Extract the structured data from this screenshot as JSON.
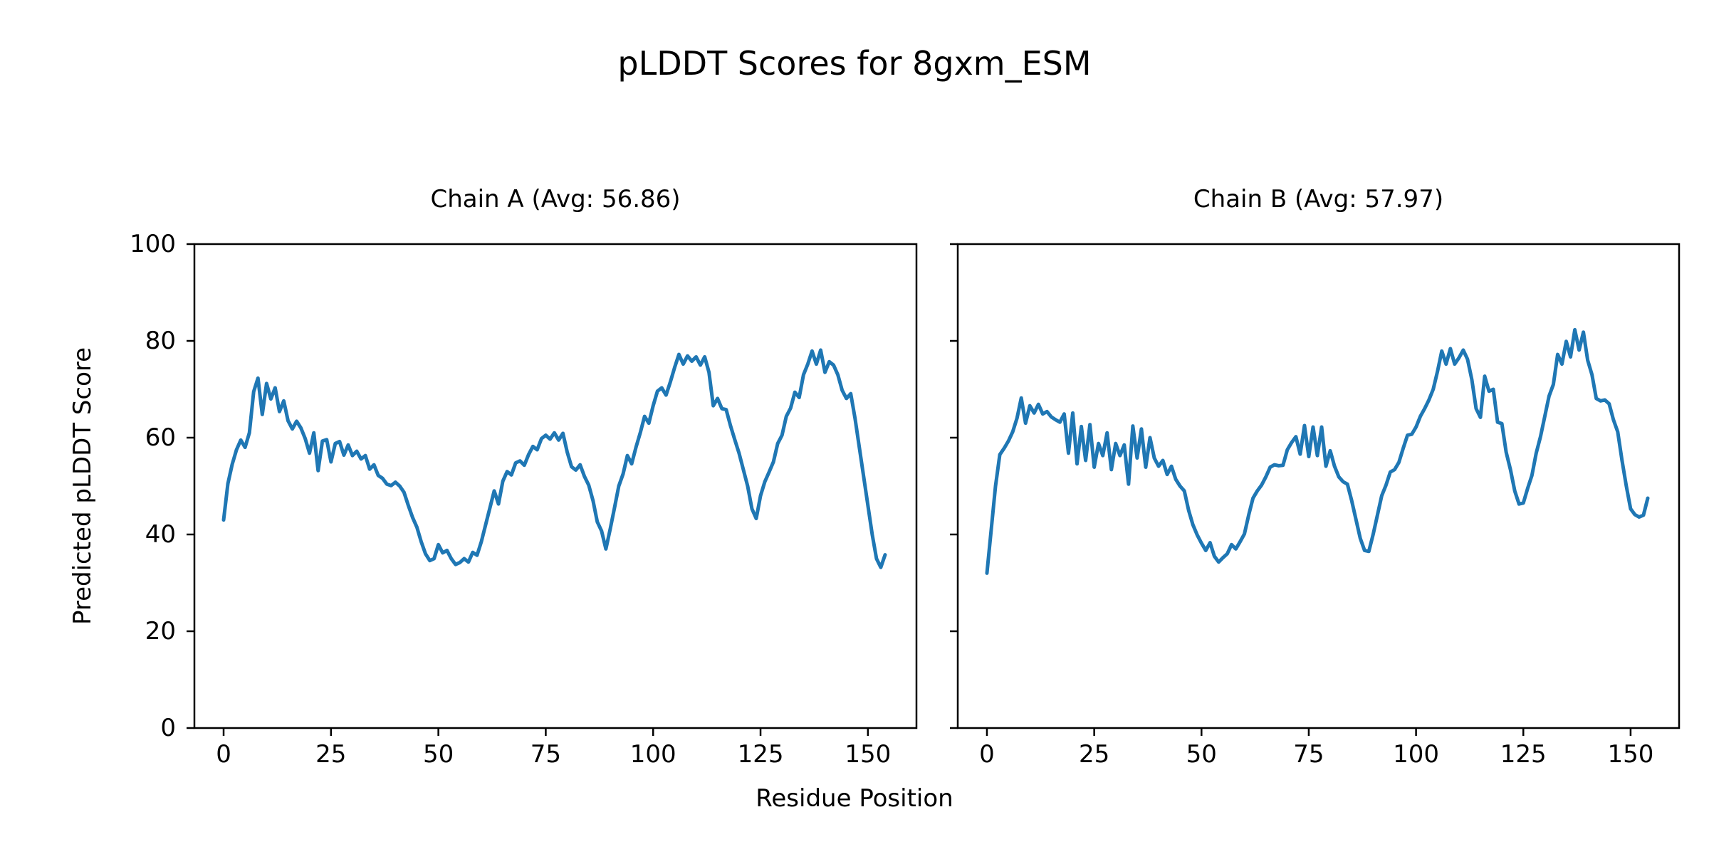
{
  "figure": {
    "suptitle": "pLDDT Scores for 8gxm_ESM",
    "xlabel": "Residue Position",
    "ylabel": "Predicted pLDDT Score",
    "background": "#ffffff",
    "text_color": "#000000",
    "spine_color": "#000000",
    "line_color": "#1f77b4"
  },
  "chart_data": [
    {
      "type": "line",
      "title": "Chain A (Avg: 56.86)",
      "avg_label": 56.86,
      "xlabel": "Residue Position",
      "ylabel": "Predicted pLDDT Score",
      "x_start": 0,
      "x_step": 1,
      "xlim": [
        -6.8,
        161.3
      ],
      "ylim": [
        0,
        100
      ],
      "x_ticks": [
        0,
        25,
        50,
        75,
        100,
        125,
        150
      ],
      "y_ticks": [
        0,
        20,
        40,
        60,
        80,
        100
      ],
      "show_y_tick_labels": true,
      "grid": false,
      "legend_position": "none",
      "series": [
        {
          "name": "Chain A",
          "color": "#1f77b4",
          "values": [
            43.0,
            50.5,
            54.5,
            57.5,
            59.5,
            58.0,
            61.0,
            69.5,
            72.3,
            64.8,
            71.2,
            68.0,
            70.3,
            65.4,
            67.6,
            63.5,
            61.8,
            63.4,
            62.0,
            59.8,
            56.8,
            61.0,
            53.2,
            59.3,
            59.6,
            55.0,
            58.8,
            59.2,
            56.4,
            58.5,
            56.3,
            57.2,
            55.6,
            56.3,
            53.5,
            54.4,
            52.2,
            51.6,
            50.4,
            50.1,
            50.8,
            50.0,
            48.7,
            46.0,
            43.5,
            41.5,
            38.5,
            36.0,
            34.6,
            35.0,
            37.9,
            36.2,
            36.7,
            35.0,
            33.8,
            34.2,
            35.0,
            34.3,
            36.3,
            35.7,
            38.5,
            42.0,
            45.5,
            49.0,
            46.3,
            51.0,
            53.0,
            52.3,
            54.8,
            55.2,
            54.3,
            56.5,
            58.2,
            57.5,
            59.8,
            60.5,
            59.7,
            61.0,
            59.5,
            60.9,
            57.0,
            54.0,
            53.3,
            54.4,
            52.0,
            50.2,
            47.0,
            42.6,
            40.7,
            37.0,
            41.1,
            45.5,
            50.0,
            52.5,
            56.3,
            54.6,
            58.0,
            61.0,
            64.4,
            63.0,
            66.6,
            69.6,
            70.3,
            68.8,
            71.5,
            74.5,
            77.2,
            75.2,
            76.9,
            75.8,
            76.7,
            75.0,
            76.7,
            73.5,
            66.6,
            68.1,
            66.0,
            65.8,
            62.5,
            59.6,
            56.8,
            53.4,
            50.0,
            45.3,
            43.3,
            48.0,
            50.9,
            52.9,
            55.0,
            58.8,
            60.5,
            64.4,
            66.1,
            69.4,
            68.3,
            73.0,
            75.2,
            77.9,
            75.2,
            78.1,
            73.5,
            75.7,
            75.0,
            73.0,
            69.8,
            68.1,
            69.1,
            64.0,
            58.0,
            52.0,
            46.0,
            40.0,
            35.0,
            33.2,
            35.8
          ]
        }
      ]
    },
    {
      "type": "line",
      "title": "Chain B (Avg: 57.97)",
      "avg_label": 57.97,
      "xlabel": "Residue Position",
      "ylabel": "Predicted pLDDT Score",
      "x_start": 0,
      "x_step": 1,
      "xlim": [
        -6.8,
        161.3
      ],
      "ylim": [
        0,
        100
      ],
      "x_ticks": [
        0,
        25,
        50,
        75,
        100,
        125,
        150
      ],
      "y_ticks": [
        0,
        20,
        40,
        60,
        80,
        100
      ],
      "show_y_tick_labels": false,
      "grid": false,
      "legend_position": "none",
      "series": [
        {
          "name": "Chain B",
          "color": "#1f77b4",
          "values": [
            32.0,
            41.0,
            50.0,
            56.5,
            57.8,
            59.3,
            61.2,
            64.0,
            68.2,
            63.0,
            66.6,
            65.1,
            66.9,
            64.9,
            65.4,
            64.3,
            63.7,
            63.2,
            64.9,
            56.8,
            65.1,
            54.6,
            62.3,
            55.3,
            62.7,
            53.9,
            58.8,
            56.3,
            61.0,
            53.4,
            58.8,
            56.3,
            58.5,
            50.4,
            62.4,
            55.8,
            61.8,
            53.9,
            60.0,
            55.8,
            54.1,
            55.3,
            52.4,
            54.1,
            51.4,
            50.0,
            49.0,
            45.0,
            42.0,
            39.9,
            38.2,
            36.7,
            38.3,
            35.5,
            34.3,
            35.2,
            36.0,
            37.9,
            37.0,
            38.5,
            40.1,
            44.0,
            47.5,
            49.0,
            50.2,
            51.9,
            53.9,
            54.4,
            54.2,
            54.3,
            57.5,
            59.0,
            60.2,
            56.6,
            62.5,
            56.1,
            62.2,
            56.3,
            62.2,
            54.1,
            57.3,
            54.1,
            51.9,
            50.9,
            50.4,
            47.0,
            43.1,
            39.2,
            36.7,
            36.5,
            40.0,
            44.0,
            48.0,
            50.2,
            52.9,
            53.4,
            54.9,
            57.8,
            60.5,
            60.7,
            62.2,
            64.4,
            66.0,
            67.8,
            70.0,
            73.7,
            77.9,
            75.2,
            78.4,
            75.2,
            76.5,
            78.1,
            76.2,
            72.0,
            66.0,
            64.2,
            72.7,
            69.6,
            70.0,
            63.2,
            62.9,
            57.0,
            53.4,
            49.0,
            46.3,
            46.5,
            49.5,
            52.2,
            56.8,
            60.2,
            64.4,
            68.6,
            71.0,
            77.2,
            75.2,
            79.9,
            76.7,
            82.3,
            78.1,
            81.8,
            76.0,
            73.0,
            68.1,
            67.6,
            67.8,
            67.0,
            63.7,
            61.2,
            55.3,
            50.0,
            45.3,
            44.1,
            43.6,
            44.0,
            47.5
          ]
        }
      ]
    }
  ]
}
